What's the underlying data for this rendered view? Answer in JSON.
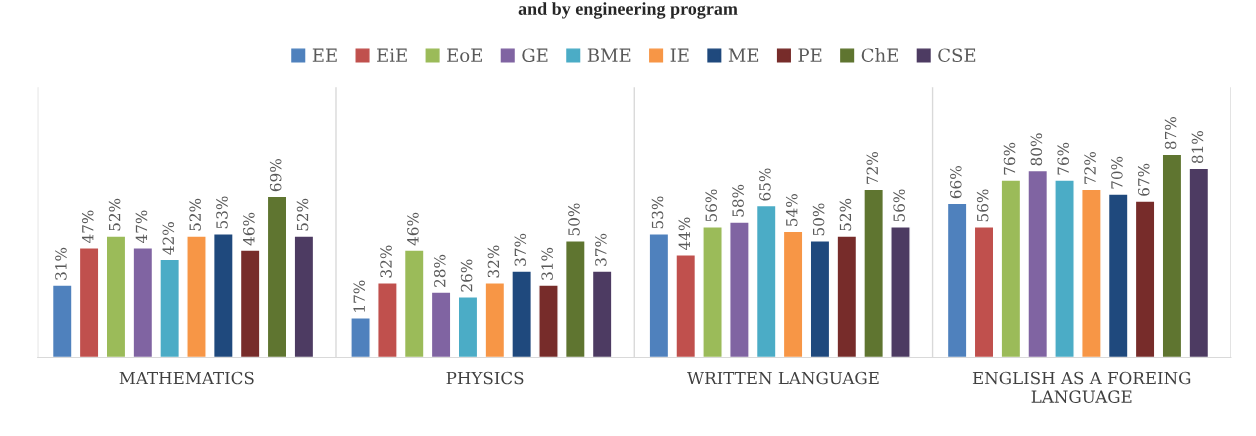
{
  "chart_data": {
    "type": "bar",
    "title": "and by engineering program",
    "categories": [
      "MATHEMATICS",
      "PHYSICS",
      "WRITTEN LANGUAGE",
      "ENGLISH AS A FOREING\nLANGUAGE"
    ],
    "series": [
      {
        "name": "EE",
        "color": "#4f81bd",
        "values": [
          31,
          17,
          53,
          66
        ],
        "value_labels": [
          "31%",
          "17%",
          "53%",
          "66%"
        ]
      },
      {
        "name": "EiE",
        "color": "#c0504d",
        "values": [
          47,
          32,
          44,
          56
        ],
        "value_labels": [
          "47%",
          "32%",
          "44%",
          "56%"
        ]
      },
      {
        "name": "EoE",
        "color": "#9bbb59",
        "values": [
          52,
          46,
          56,
          76
        ],
        "value_labels": [
          "52%",
          "46%",
          "56%",
          "76%"
        ]
      },
      {
        "name": "GE",
        "color": "#8064a2",
        "values": [
          47,
          28,
          58,
          80
        ],
        "value_labels": [
          "47%",
          "28%",
          "58%",
          "80%"
        ]
      },
      {
        "name": "BME",
        "color": "#4bacc6",
        "values": [
          42,
          26,
          65,
          76
        ],
        "value_labels": [
          "42%",
          "26%",
          "65%",
          "76%"
        ]
      },
      {
        "name": "IE",
        "color": "#f79646",
        "values": [
          52,
          32,
          54,
          72
        ],
        "value_labels": [
          "52%",
          "32%",
          "54%",
          "72%"
        ]
      },
      {
        "name": "ME",
        "color": "#1f497d",
        "values": [
          53,
          37,
          50,
          70
        ],
        "value_labels": [
          "53%",
          "37%",
          "50%",
          "70%"
        ]
      },
      {
        "name": "PE",
        "color": "#772c2a",
        "values": [
          46,
          31,
          52,
          67
        ],
        "value_labels": [
          "46%",
          "31%",
          "52%",
          "67%"
        ]
      },
      {
        "name": "ChE",
        "color": "#5f7530",
        "values": [
          69,
          50,
          72,
          87
        ],
        "value_labels": [
          "69%",
          "50%",
          "72%",
          "87%"
        ]
      },
      {
        "name": "CSE",
        "color": "#4d3b62",
        "values": [
          52,
          37,
          56,
          81
        ],
        "value_labels": [
          "52%",
          "37%",
          "56%",
          "81%"
        ]
      }
    ],
    "legend": "top",
    "grid": false
  }
}
